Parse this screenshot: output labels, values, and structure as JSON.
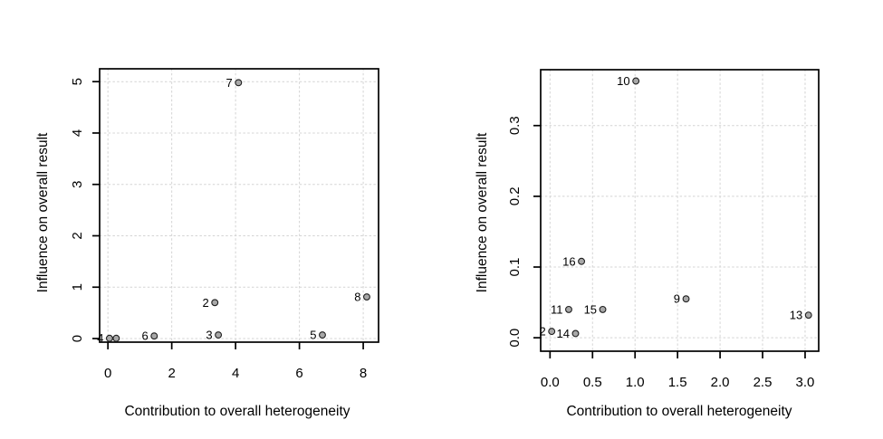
{
  "figure": {
    "background": "#ffffff",
    "description_left_plot": "Baujat-style scatter plot",
    "description_right_plot": "Baujat-style scatter plot"
  },
  "style": {
    "point_fill": "#a8a8a8",
    "point_stroke": "#1f1f1f",
    "grid_color": "#d4d4d4",
    "axis_color": "#000000"
  },
  "chart_data": [
    {
      "type": "scatter",
      "title": "",
      "xlabel": "Contribution to overall heterogeneity",
      "ylabel": "Influence on overall result",
      "xlim": [
        -0.26,
        8.48
      ],
      "ylim": [
        -0.07,
        5.25
      ],
      "grid": true,
      "grid_style": "dashed",
      "legend": "none",
      "xticks": {
        "values": [
          0,
          2,
          4,
          6,
          8
        ],
        "labels": [
          "0",
          "2",
          "4",
          "6",
          "8"
        ]
      },
      "yticks": {
        "values": [
          0,
          1,
          2,
          3,
          4,
          5
        ],
        "labels": [
          "0",
          "1",
          "2",
          "3",
          "4",
          "5"
        ]
      },
      "points": [
        {
          "label": "4",
          "x": 0.05,
          "y": 0.005
        },
        {
          "label": "",
          "x": 0.26,
          "y": 0.005
        },
        {
          "label": "6",
          "x": 1.45,
          "y": 0.05
        },
        {
          "label": "2",
          "x": 3.35,
          "y": 0.7
        },
        {
          "label": "3",
          "x": 3.46,
          "y": 0.07
        },
        {
          "label": "5",
          "x": 6.72,
          "y": 0.07
        },
        {
          "label": "7",
          "x": 4.09,
          "y": 4.98
        },
        {
          "label": "8",
          "x": 8.11,
          "y": 0.81
        }
      ]
    },
    {
      "type": "scatter",
      "title": "",
      "xlabel": "Contribution to overall heterogeneity",
      "ylabel": "Influence on overall result",
      "xlim": [
        -0.11,
        3.16
      ],
      "ylim": [
        -0.019,
        0.379
      ],
      "grid": true,
      "grid_style": "dashed",
      "legend": "none",
      "xticks": {
        "values": [
          0,
          0.5,
          1,
          1.5,
          2,
          2.5,
          3
        ],
        "labels": [
          "0.0",
          "0.5",
          "1.0",
          "1.5",
          "2.0",
          "2.5",
          "3.0"
        ]
      },
      "yticks": {
        "values": [
          0,
          0.1,
          0.2,
          0.3
        ],
        "labels": [
          "0.0",
          "0.1",
          "0.2",
          "0.3"
        ]
      },
      "points": [
        {
          "label": "2",
          "x": 0.02,
          "y": 0.009
        },
        {
          "label": "14",
          "x": 0.3,
          "y": 0.006
        },
        {
          "label": "11",
          "x": 0.22,
          "y": 0.04
        },
        {
          "label": "15",
          "x": 0.62,
          "y": 0.04
        },
        {
          "label": "16",
          "x": 0.37,
          "y": 0.108
        },
        {
          "label": "9",
          "x": 1.6,
          "y": 0.055
        },
        {
          "label": "10",
          "x": 1.01,
          "y": 0.363
        },
        {
          "label": "13",
          "x": 3.04,
          "y": 0.032
        }
      ]
    }
  ]
}
